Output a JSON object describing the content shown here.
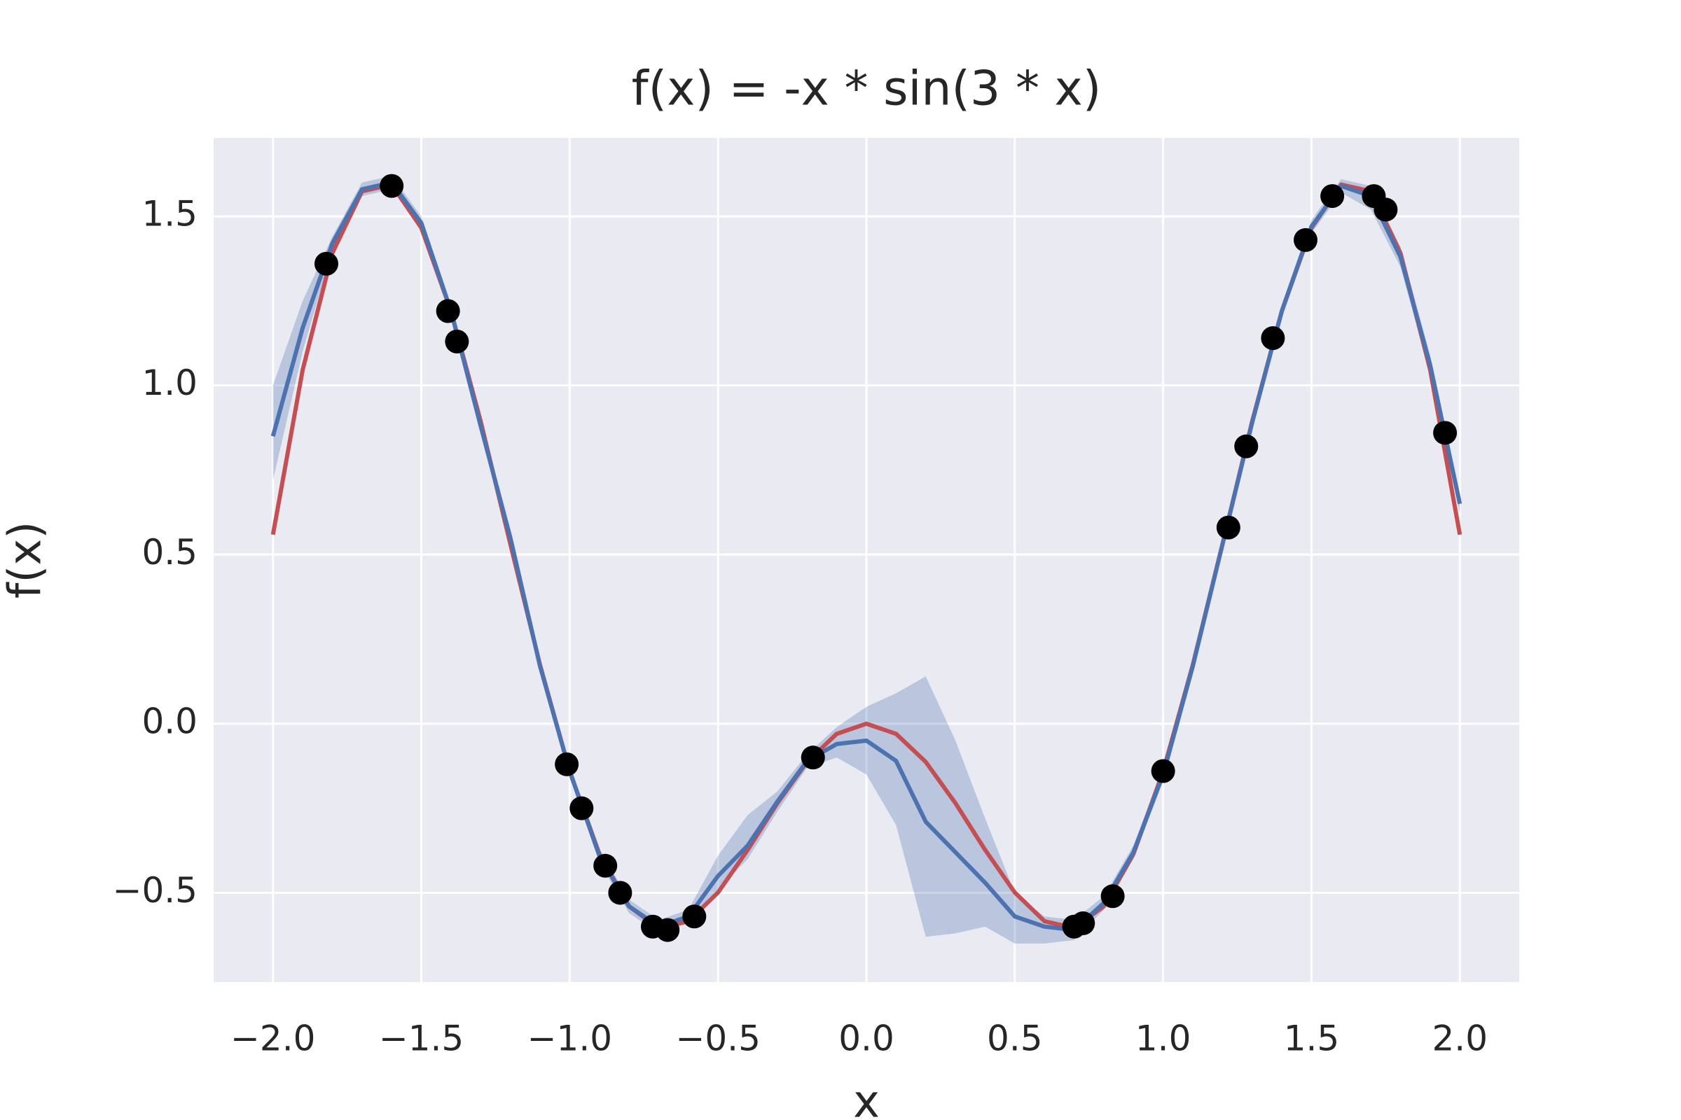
{
  "chart_data": {
    "type": "line",
    "title": "f(x) = -x * sin(3 * x)",
    "x_label": "x",
    "y_label": "f(x)",
    "background": "#eaeaf2",
    "grid": true,
    "xlim": [
      -2.2,
      2.2
    ],
    "ylim": [
      -0.764,
      1.732
    ],
    "xticks": [
      {
        "value": -2,
        "label": "−2.0"
      },
      {
        "value": -1.5,
        "label": "−1.5"
      },
      {
        "value": -1,
        "label": "−1.0"
      },
      {
        "value": -0.5,
        "label": "−0.5"
      },
      {
        "value": 0,
        "label": "0.0"
      },
      0.5,
      {
        "value": 1,
        "label": "1.0"
      },
      1.5,
      {
        "value": 2,
        "label": "2.0"
      }
    ],
    "yticks": [
      {
        "value": -0.5,
        "label": "−0.5"
      },
      {
        "value": 0,
        "label": "0.0"
      },
      0.5,
      {
        "value": 1,
        "label": "1.0"
      },
      1.5
    ],
    "x": [
      -2.0,
      -1.9,
      -1.8,
      -1.7,
      -1.6,
      -1.5,
      -1.4,
      -1.3,
      -1.2,
      -1.1,
      -1.0,
      -0.9,
      -0.8,
      -0.7,
      -0.6,
      -0.5,
      -0.4,
      -0.3,
      -0.2,
      -0.1,
      0.0,
      0.1,
      0.2,
      0.3,
      0.4,
      0.5,
      0.6,
      0.7,
      0.8,
      0.9,
      1.0,
      1.1,
      1.2,
      1.3,
      1.4,
      1.5,
      1.6,
      1.7,
      1.8,
      1.9,
      2.0
    ],
    "series": [
      {
        "color": "#c44e52",
        "values": [
          0.559,
          1.046,
          1.391,
          1.574,
          1.594,
          1.466,
          1.22,
          0.894,
          0.531,
          0.174,
          -0.141,
          -0.385,
          -0.54,
          -0.604,
          -0.584,
          -0.499,
          -0.373,
          -0.235,
          -0.113,
          -0.03,
          0.0,
          -0.03,
          -0.113,
          -0.235,
          -0.373,
          -0.499,
          -0.584,
          -0.604,
          -0.54,
          -0.385,
          -0.141,
          0.174,
          0.531,
          0.894,
          1.22,
          1.466,
          1.594,
          1.574,
          1.391,
          1.046,
          0.559
        ]
      },
      {
        "color": "#4c72b0",
        "values": [
          0.85,
          1.17,
          1.42,
          1.58,
          1.6,
          1.48,
          1.22,
          0.88,
          0.55,
          0.17,
          -0.14,
          -0.39,
          -0.54,
          -0.6,
          -0.57,
          -0.45,
          -0.36,
          -0.23,
          -0.11,
          -0.06,
          -0.05,
          -0.11,
          -0.29,
          -0.38,
          -0.47,
          -0.57,
          -0.6,
          -0.61,
          -0.53,
          -0.38,
          -0.15,
          0.17,
          0.53,
          0.89,
          1.22,
          1.47,
          1.59,
          1.56,
          1.38,
          1.06,
          0.65
        ]
      }
    ],
    "band": {
      "color": "#4c72b0",
      "lower": [
        0.72,
        1.1,
        1.4,
        1.56,
        1.58,
        1.46,
        1.2,
        0.86,
        0.53,
        0.15,
        -0.16,
        -0.41,
        -0.56,
        -0.62,
        -0.59,
        -0.49,
        -0.4,
        -0.26,
        -0.13,
        -0.1,
        -0.15,
        -0.3,
        -0.63,
        -0.62,
        -0.6,
        -0.65,
        -0.65,
        -0.64,
        -0.55,
        -0.4,
        -0.17,
        0.15,
        0.51,
        0.87,
        1.2,
        1.45,
        1.57,
        1.52,
        1.35,
        1.03,
        0.62
      ],
      "upper": [
        1.0,
        1.25,
        1.44,
        1.6,
        1.62,
        1.5,
        1.24,
        0.9,
        0.57,
        0.19,
        -0.12,
        -0.37,
        -0.52,
        -0.58,
        -0.55,
        -0.39,
        -0.27,
        -0.2,
        -0.09,
        -0.01,
        0.05,
        0.09,
        0.14,
        -0.05,
        -0.28,
        -0.5,
        -0.57,
        -0.58,
        -0.51,
        -0.36,
        -0.13,
        0.19,
        0.55,
        0.91,
        1.24,
        1.49,
        1.61,
        1.59,
        1.41,
        1.09,
        0.68
      ]
    },
    "points": {
      "color": "#000000",
      "x": [
        -1.82,
        -1.6,
        -1.41,
        -1.38,
        -1.01,
        -0.96,
        -0.88,
        -0.83,
        -0.72,
        -0.67,
        -0.58,
        -0.18,
        0.7,
        0.73,
        0.83,
        1.0,
        1.22,
        1.28,
        1.37,
        1.48,
        1.57,
        1.71,
        1.75,
        1.95
      ],
      "y": [
        1.36,
        1.59,
        1.22,
        1.13,
        -0.12,
        -0.25,
        -0.42,
        -0.5,
        -0.6,
        -0.61,
        -0.57,
        -0.1,
        -0.6,
        -0.59,
        -0.51,
        -0.14,
        0.58,
        0.82,
        1.14,
        1.43,
        1.56,
        1.56,
        1.52,
        0.86
      ]
    }
  }
}
